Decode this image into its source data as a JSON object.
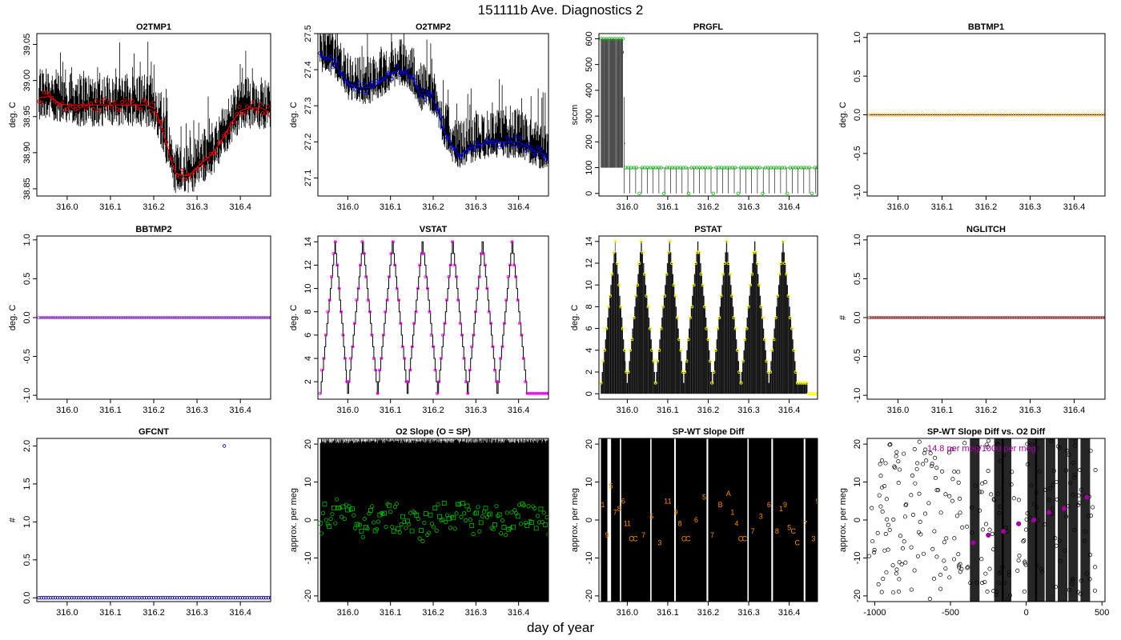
{
  "figure": {
    "title": "151111b   Ave. Diagnostics 2",
    "xlabel": "day of year"
  },
  "colors": {
    "red": "#ff0000",
    "blue": "#0000ff",
    "green": "#00bb00",
    "orange": "#ffa500",
    "purple": "#a020f0",
    "magenta": "#ff00ff",
    "yellow": "#ffff00",
    "brown": "#a52a2a",
    "darkblue": "#00008b",
    "text_orange": "#ff8c00",
    "text_purple": "#a000a0"
  },
  "chart_data": [
    {
      "type": "line",
      "title": "O2TMP1",
      "xlabel": "",
      "ylabel": "deg. C",
      "xlim": [
        315.93,
        316.47
      ],
      "ylim": [
        38.84,
        39.065
      ],
      "xticks": [
        316.0,
        316.1,
        316.2,
        316.3,
        316.4
      ],
      "xtick_labels": [
        "316.0",
        "316.1",
        "316.2",
        "316.3",
        "316.4"
      ],
      "yticks": [
        38.85,
        38.9,
        38.95,
        39.0,
        39.05
      ],
      "ytick_labels": [
        "38.85",
        "38.90",
        "38.95",
        "39.00",
        "39.05"
      ],
      "marker_color": "red",
      "series": [
        {
          "x": [
            315.935,
            315.96,
            315.98,
            316.0,
            316.05,
            316.1,
            316.14,
            316.18,
            316.2,
            316.21,
            316.22,
            316.23,
            316.24,
            316.25,
            316.27,
            316.29,
            316.3,
            316.32,
            316.34,
            316.36,
            316.38,
            316.4,
            316.42,
            316.45,
            316.47
          ],
          "values": [
            38.976,
            38.978,
            38.968,
            38.966,
            38.966,
            38.966,
            38.966,
            38.966,
            38.962,
            38.95,
            38.93,
            38.91,
            38.89,
            38.872,
            38.868,
            38.872,
            38.88,
            38.89,
            38.902,
            38.92,
            38.942,
            38.958,
            38.962,
            38.962,
            38.955
          ]
        }
      ]
    },
    {
      "type": "line",
      "title": "O2TMP2",
      "xlabel": "",
      "ylabel": "deg. C",
      "xlim": [
        315.93,
        316.47
      ],
      "ylim": [
        27.05,
        27.5
      ],
      "xticks": [
        316.0,
        316.1,
        316.2,
        316.3,
        316.4
      ],
      "xtick_labels": [
        "316.0",
        "316.1",
        "316.2",
        "316.3",
        "316.4"
      ],
      "yticks": [
        27.1,
        27.2,
        27.3,
        27.4,
        27.5
      ],
      "ytick_labels": [
        "27.1",
        "27.2",
        "27.3",
        "27.4",
        "27.5"
      ],
      "marker_color": "blue",
      "series": [
        {
          "x": [
            315.935,
            315.96,
            315.98,
            316.0,
            316.03,
            316.06,
            316.09,
            316.12,
            316.15,
            316.17,
            316.19,
            316.21,
            316.22,
            316.24,
            316.26,
            316.28,
            316.3,
            316.33,
            316.36,
            316.4,
            316.43,
            316.47
          ],
          "values": [
            27.44,
            27.43,
            27.4,
            27.36,
            27.35,
            27.35,
            27.38,
            27.4,
            27.38,
            27.33,
            27.33,
            27.3,
            27.24,
            27.2,
            27.16,
            27.18,
            27.19,
            27.2,
            27.2,
            27.2,
            27.18,
            27.16
          ]
        }
      ]
    },
    {
      "type": "line",
      "title": "PRGFL",
      "xlabel": "",
      "ylabel": "sccm",
      "xlim": [
        315.93,
        316.47
      ],
      "ylim": [
        -10,
        620
      ],
      "xticks": [
        316.0,
        316.1,
        316.2,
        316.3,
        316.4
      ],
      "xtick_labels": [
        "316.0",
        "316.1",
        "316.2",
        "316.3",
        "316.4"
      ],
      "yticks": [
        0,
        100,
        200,
        300,
        400,
        500,
        600
      ],
      "ytick_labels": [
        "0",
        "100",
        "200",
        "300",
        "400",
        "500",
        "600"
      ],
      "marker_color": "green",
      "series": [
        {
          "x": [
            315.935,
            315.99,
            315.995,
            316.47
          ],
          "values": [
            600,
            600,
            100,
            100
          ]
        }
      ]
    },
    {
      "type": "line",
      "title": "BBTMP1",
      "xlabel": "",
      "ylabel": "deg. C",
      "xlim": [
        315.93,
        316.47
      ],
      "ylim": [
        -1.05,
        1.05
      ],
      "xticks": [
        316.0,
        316.1,
        316.2,
        316.3,
        316.4
      ],
      "xtick_labels": [
        "316.0",
        "316.1",
        "316.2",
        "316.3",
        "316.4"
      ],
      "yticks": [
        -1.0,
        -0.5,
        0.0,
        0.5,
        1.0
      ],
      "ytick_labels": [
        "-1.0",
        "-0.5",
        "0.0",
        "0.5",
        "1.0"
      ],
      "marker_color": "orange",
      "series": [
        {
          "x": [
            315.935,
            316.47
          ],
          "values": [
            0,
            0
          ]
        }
      ]
    },
    {
      "type": "line",
      "title": "BBTMP2",
      "xlabel": "",
      "ylabel": "deg. C",
      "xlim": [
        315.93,
        316.47
      ],
      "ylim": [
        -1.05,
        1.05
      ],
      "xticks": [
        316.0,
        316.1,
        316.2,
        316.3,
        316.4
      ],
      "xtick_labels": [
        "316.0",
        "316.1",
        "316.2",
        "316.3",
        "316.4"
      ],
      "yticks": [
        -1.0,
        -0.5,
        0.0,
        0.5,
        1.0
      ],
      "ytick_labels": [
        "-1.0",
        "-0.5",
        "0.0",
        "0.5",
        "1.0"
      ],
      "marker_color": "purple",
      "series": [
        {
          "x": [
            315.935,
            316.47
          ],
          "values": [
            0,
            0
          ]
        }
      ]
    },
    {
      "type": "line",
      "title": "VSTAT",
      "xlabel": "",
      "ylabel": "deg. C",
      "xlim": [
        315.93,
        316.47
      ],
      "ylim": [
        0.5,
        14.5
      ],
      "xticks": [
        316.0,
        316.1,
        316.2,
        316.3,
        316.4
      ],
      "xtick_labels": [
        "316.0",
        "316.1",
        "316.2",
        "316.3",
        "316.4"
      ],
      "yticks": [
        2,
        4,
        6,
        8,
        10,
        12,
        14
      ],
      "ytick_labels": [
        "2",
        "4",
        "6",
        "8",
        "10",
        "12",
        "14"
      ],
      "marker_color": "magenta",
      "series": [
        {
          "x": [
            315.935,
            315.97,
            316.0,
            316.035,
            316.07,
            316.105,
            316.14,
            316.175,
            316.21,
            316.245,
            316.28,
            316.315,
            316.35,
            316.385,
            316.42,
            316.47
          ],
          "values": [
            1,
            14,
            1,
            14,
            1,
            14,
            1,
            14,
            1,
            14,
            1,
            14,
            1,
            14,
            1,
            1
          ]
        }
      ]
    },
    {
      "type": "line",
      "title": "PSTAT",
      "xlabel": "",
      "ylabel": "deg. C",
      "xlim": [
        315.93,
        316.47
      ],
      "ylim": [
        -0.5,
        14.5
      ],
      "xticks": [
        316.0,
        316.1,
        316.2,
        316.3,
        316.4
      ],
      "xtick_labels": [
        "316.0",
        "316.1",
        "316.2",
        "316.3",
        "316.4"
      ],
      "yticks": [
        0,
        2,
        4,
        6,
        8,
        10,
        12,
        14
      ],
      "ytick_labels": [
        "0",
        "2",
        "4",
        "6",
        "8",
        "10",
        "12",
        "14"
      ],
      "marker_color": "yellow",
      "series": [
        {
          "x": [
            315.935,
            315.97,
            316.0,
            316.035,
            316.07,
            316.105,
            316.14,
            316.175,
            316.21,
            316.245,
            316.28,
            316.315,
            316.35,
            316.385,
            316.42,
            316.47
          ],
          "values": [
            1,
            14,
            1,
            14,
            1,
            14,
            1,
            14,
            1,
            14,
            1,
            14,
            1,
            14,
            1,
            0
          ]
        }
      ]
    },
    {
      "type": "line",
      "title": "NGLITCH",
      "xlabel": "",
      "ylabel": "#",
      "xlim": [
        315.93,
        316.47
      ],
      "ylim": [
        -1.05,
        1.05
      ],
      "xticks": [
        316.0,
        316.1,
        316.2,
        316.3,
        316.4
      ],
      "xtick_labels": [
        "316.0",
        "316.1",
        "316.2",
        "316.3",
        "316.4"
      ],
      "yticks": [
        -1.0,
        -0.5,
        0.0,
        0.5,
        1.0
      ],
      "ytick_labels": [
        "-1.0",
        "-0.5",
        "0.0",
        "0.5",
        "1.0"
      ],
      "marker_color": "brown",
      "series": [
        {
          "x": [
            315.935,
            316.47
          ],
          "values": [
            0,
            0
          ]
        }
      ]
    },
    {
      "type": "scatter",
      "title": "GFCNT",
      "xlabel": "",
      "ylabel": "#",
      "xlim": [
        315.93,
        316.47
      ],
      "ylim": [
        -0.05,
        2.1
      ],
      "xticks": [
        316.0,
        316.1,
        316.2,
        316.3,
        316.4
      ],
      "xtick_labels": [
        "316.0",
        "316.1",
        "316.2",
        "316.3",
        "316.4"
      ],
      "yticks": [
        0.0,
        0.5,
        1.0,
        1.5,
        2.0
      ],
      "ytick_labels": [
        "0.0",
        "0.5",
        "1.0",
        "1.5",
        "2.0"
      ],
      "marker_color": "darkblue",
      "series": [
        {
          "x": [
            315.935,
            316.36,
            316.363,
            316.366,
            316.47
          ],
          "values": [
            0,
            0,
            2,
            0,
            0
          ]
        }
      ]
    },
    {
      "type": "scatter",
      "title": "O2 Slope (O = SP)",
      "xlabel": "",
      "ylabel": "approx. per meg",
      "xlim": [
        315.93,
        316.47
      ],
      "ylim": [
        -21.5,
        21.5
      ],
      "xticks": [
        316.0,
        316.1,
        316.2,
        316.3,
        316.4
      ],
      "xtick_labels": [
        "316.0",
        "316.1",
        "316.2",
        "316.3",
        "316.4"
      ],
      "yticks": [
        -20,
        -10,
        0,
        10,
        20
      ],
      "ytick_labels": [
        "-20",
        "-10",
        "0",
        "10",
        "20"
      ],
      "marker_color": "green",
      "series": [
        {
          "x": [
            315.935,
            315.98,
            316.03,
            316.08,
            316.13,
            316.18,
            316.23,
            316.28,
            316.33,
            316.38,
            316.43,
            316.47
          ],
          "values": [
            0,
            2,
            -1,
            1,
            0,
            -2,
            2,
            0,
            1,
            -1,
            2,
            0
          ]
        }
      ]
    },
    {
      "type": "scatter",
      "title": "SP-WT Slope Diff",
      "xlabel": "",
      "ylabel": "approx. per meg",
      "xlim": [
        315.93,
        316.47
      ],
      "ylim": [
        -21.5,
        21.5
      ],
      "xticks": [
        316.0,
        316.1,
        316.2,
        316.3,
        316.4
      ],
      "xtick_labels": [
        "316.0",
        "316.1",
        "316.2",
        "316.3",
        "316.4"
      ],
      "yticks": [
        -20,
        -10,
        0,
        10,
        20
      ],
      "ytick_labels": [
        "-20",
        "-10",
        "0",
        "10",
        "20"
      ],
      "marker_color": "text_orange",
      "labels": [
        "1",
        "9",
        "5",
        "7",
        "8",
        "6",
        "11",
        "C",
        "C",
        "7",
        "5",
        "3",
        "11",
        "9",
        "8",
        "C",
        "C",
        "6",
        "5",
        "7",
        "B",
        "A",
        "1",
        "4",
        "C",
        "C",
        "7",
        "3",
        "6",
        "8",
        "1",
        "9",
        "5",
        "C",
        "C",
        "7",
        "3",
        "9"
      ],
      "series": [
        {
          "x": [
            315.94,
            315.95,
            315.96,
            315.97,
            315.98,
            315.99,
            316.0,
            316.01,
            316.02,
            316.04,
            316.06,
            316.08,
            316.1,
            316.12,
            316.13,
            316.14,
            316.15,
            316.17,
            316.19,
            316.21,
            316.23,
            316.25,
            316.26,
            316.27,
            316.28,
            316.29,
            316.31,
            316.33,
            316.35,
            316.37,
            316.38,
            316.39,
            316.4,
            316.41,
            316.42,
            316.44,
            316.46,
            316.47
          ],
          "values": [
            4,
            -4,
            9,
            2,
            3,
            5,
            -1,
            -5,
            -5,
            -4,
            1,
            -6,
            5,
            2,
            -1,
            -5,
            -5,
            0,
            6,
            -4,
            4,
            7,
            2,
            -1,
            -5,
            -5,
            -3,
            1,
            4,
            -3,
            3,
            4,
            -2,
            -3,
            -6,
            -1,
            -5,
            5
          ]
        }
      ]
    },
    {
      "type": "scatter",
      "title": "SP-WT Slope Diff vs. O2 Diff",
      "xlabel": "",
      "ylabel": "approx. per meg",
      "xlim": [
        -1050,
        520
      ],
      "ylim": [
        -21.5,
        21.5
      ],
      "xticks": [
        -1000,
        -500,
        0,
        500
      ],
      "xtick_labels": [
        "-1000",
        "-500",
        "0",
        "500"
      ],
      "yticks": [
        -20,
        -10,
        0,
        10,
        20
      ],
      "ytick_labels": [
        "-20",
        "-10",
        "0",
        "10",
        "20"
      ],
      "marker_color": "text_purple",
      "annotation": "14.8 per meg/1000 per meg",
      "series": [
        {
          "x": [
            -350,
            -250,
            -150,
            -50,
            50,
            150,
            250,
            400
          ],
          "values": [
            -6,
            -4,
            -3,
            -1,
            0,
            2,
            3,
            6
          ]
        }
      ]
    }
  ]
}
